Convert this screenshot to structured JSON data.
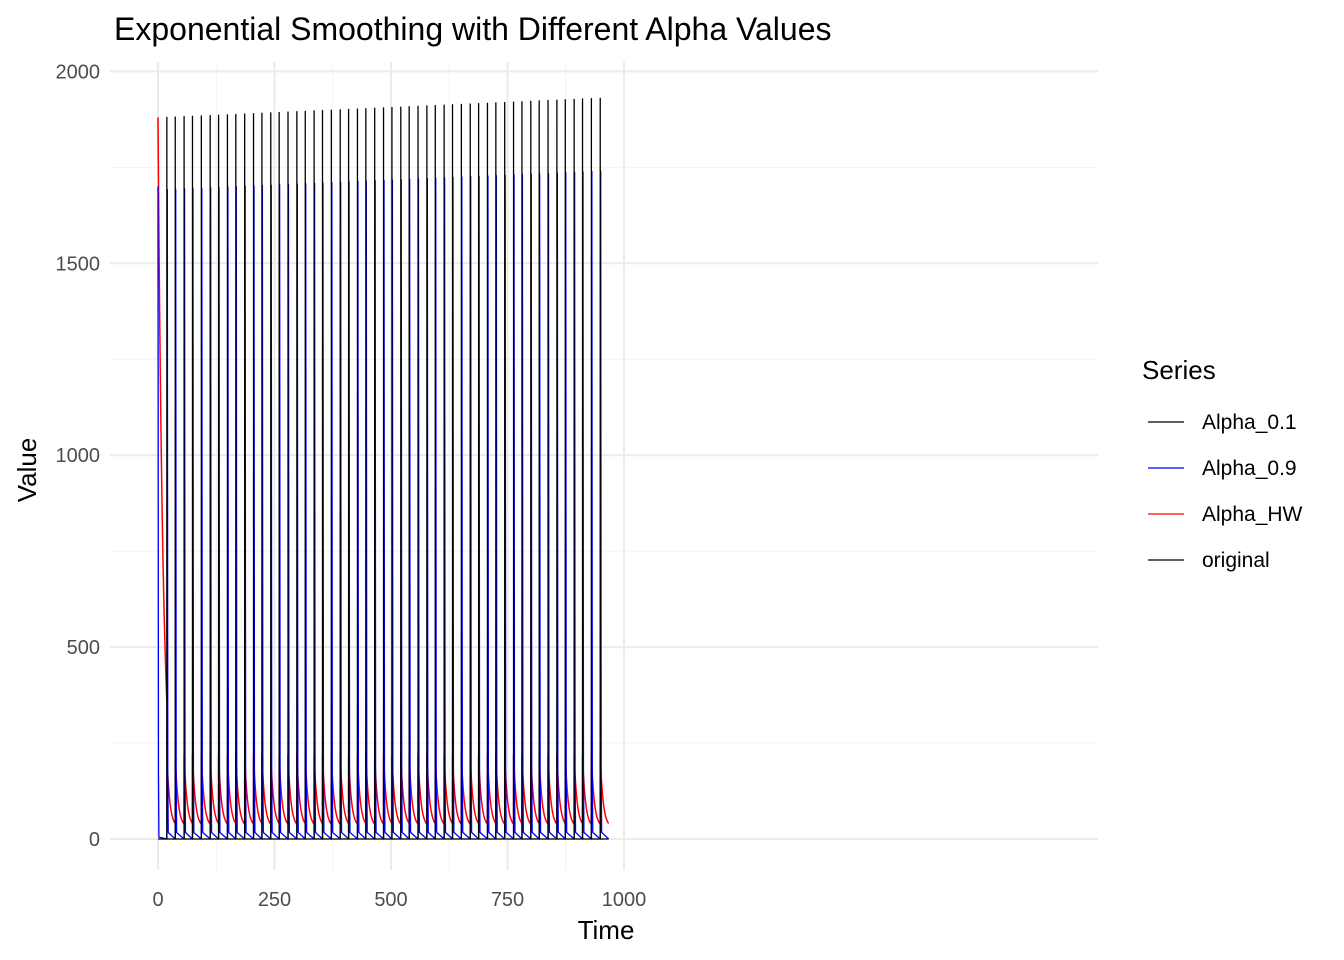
{
  "chart_data": {
    "type": "line",
    "title": "Exponential Smoothing with Different Alpha Values",
    "xlabel": "Time",
    "ylabel": "Value",
    "xlim": [
      -30,
      1000
    ],
    "ylim": [
      -80,
      2000
    ],
    "x_ticks": [
      0,
      250,
      500,
      750,
      1000
    ],
    "x_tick_labels": [
      "0",
      "250",
      "500",
      "750",
      "1000"
    ],
    "y_ticks": [
      0,
      500,
      1000,
      1500,
      2000
    ],
    "y_tick_labels": [
      "0",
      "500",
      "1000",
      "1500",
      "2000"
    ],
    "grid": true,
    "legend": {
      "title": "Series",
      "position": "right",
      "entries": [
        {
          "name": "Alpha_0.1",
          "color": "#000000"
        },
        {
          "name": "Alpha_0.9",
          "color": "#0000ff"
        },
        {
          "name": "Alpha_HW",
          "color": "#ff0000"
        },
        {
          "name": "original",
          "color": "#000000"
        }
      ]
    },
    "spike_period": 18.6,
    "n_points": 967,
    "series": [
      {
        "name": "original",
        "color": "#000000",
        "spike_start": 1880,
        "spike_end": 1930,
        "baseline": 0
      },
      {
        "name": "Alpha_0.9",
        "color": "#0000ff",
        "initial": 1700,
        "spike_start": 1692,
        "spike_end": 1740,
        "baseline": 0
      },
      {
        "name": "Alpha_HW",
        "color": "#ff0000",
        "initial": 1880,
        "peak": 220,
        "floor": 30
      },
      {
        "name": "Alpha_0.1",
        "color": "#000000",
        "spike_start": 1880,
        "spike_end": 1930,
        "baseline": 0
      }
    ]
  }
}
